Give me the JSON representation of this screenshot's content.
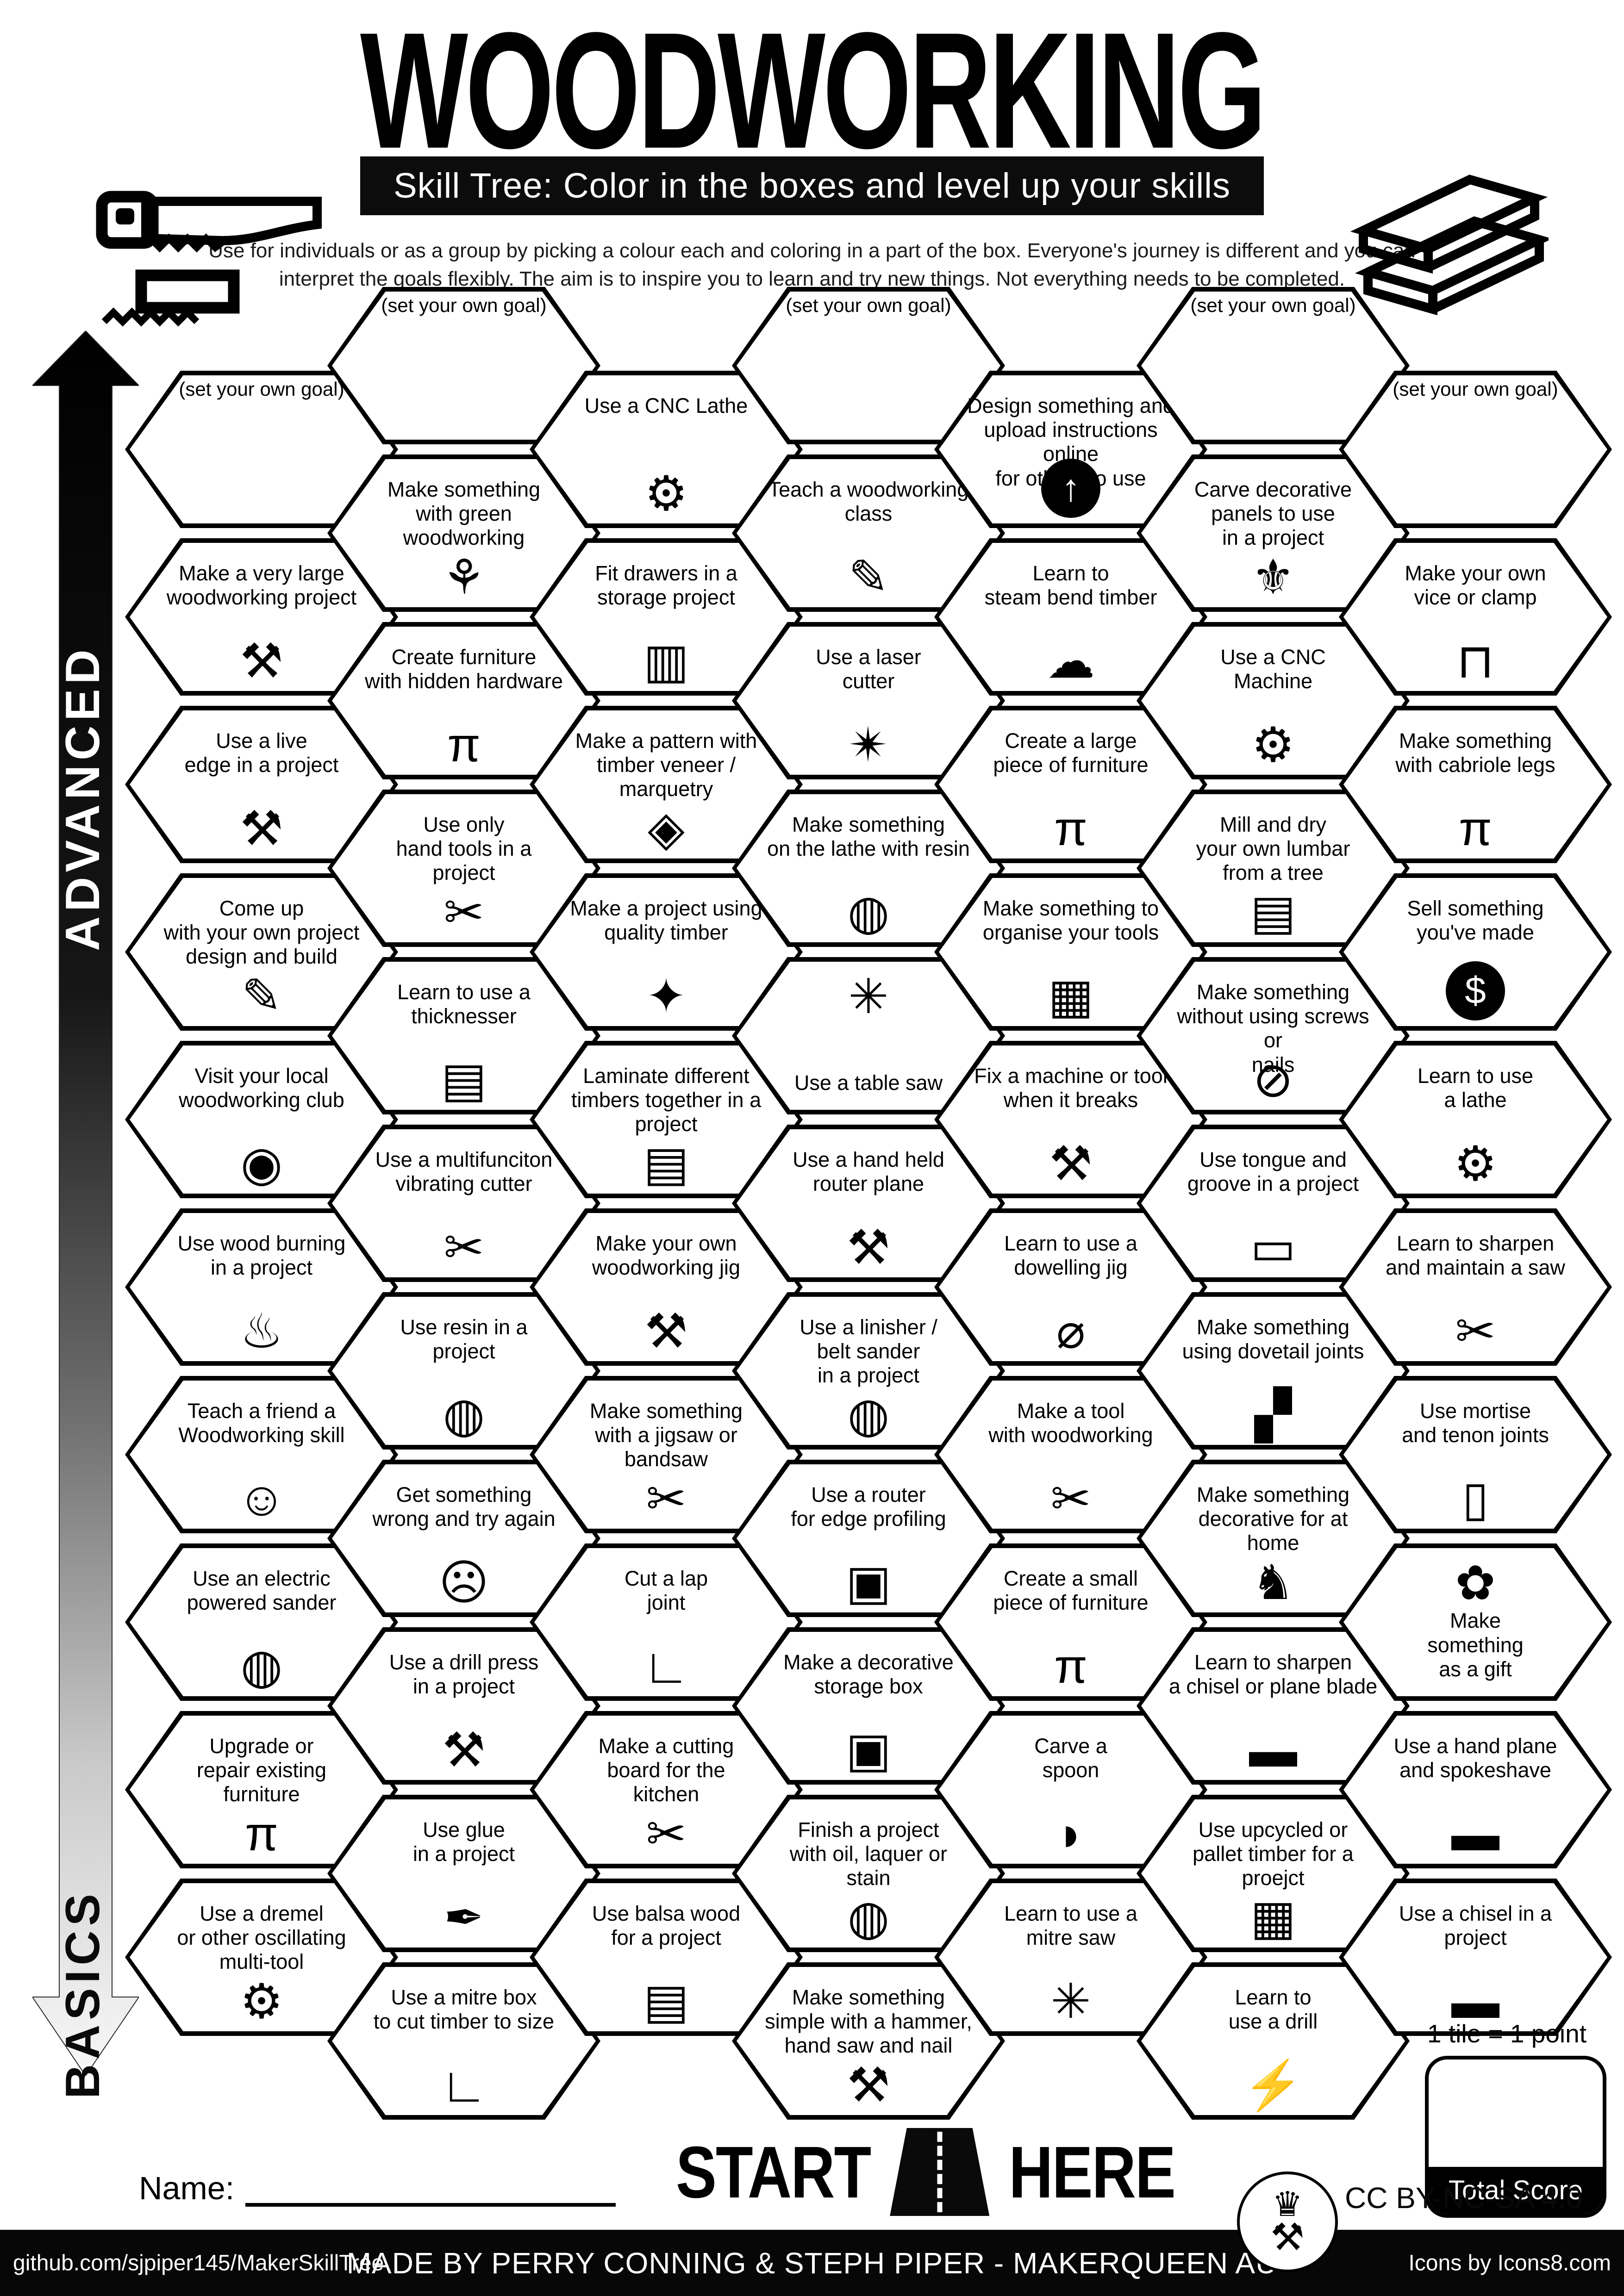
{
  "title": "WOODWORKING",
  "subtitle": "Skill Tree:  Color in the boxes and level up your skills",
  "description": "Use for individuals or as a group by picking a colour each and coloring in a part of the box.  Everyone's journey is different and you can\ninterpret the goals flexibly.  The aim is to inspire you to learn and try new things. Not everything needs to be completed.",
  "axis": {
    "top_label": "ADVANCED",
    "bottom_label": "BASICS"
  },
  "start_here": {
    "start": "START",
    "here": "HERE"
  },
  "name_label": "Name:",
  "scoring": {
    "tile_note": "1 tile = 1 point",
    "total_label": "Total Score"
  },
  "license": "CC BY-NC-SA 4.0",
  "logo": {
    "crown": "♛",
    "tools": "⚒"
  },
  "footer": {
    "left": "github.com/sjpiper145/MakerSkillTree",
    "center": "MADE BY PERRY CONNING & STEPH PIPER  -  MAKERQUEEN AU",
    "right": "Icons by Icons8.com"
  },
  "columns": [
    {
      "hexes": [
        {
          "label": "(set your own goal)",
          "icon": "blank",
          "glyph": ""
        },
        {
          "label": "Make a very large\nwoodworking project",
          "icon": "person-carrying-timber",
          "glyph": "⚒"
        },
        {
          "label": "Use a live\nedge in a project",
          "icon": "axe-on-log",
          "glyph": "⚒"
        },
        {
          "label": "Come up\nwith your own project\ndesign and build",
          "icon": "blueprint-pencil",
          "glyph": "✎"
        },
        {
          "label": "Visit your local\nwoodworking club",
          "icon": "location-pin",
          "glyph": "◉"
        },
        {
          "label": "Use wood burning\nin a project",
          "icon": "flame",
          "glyph": "♨"
        },
        {
          "label": "Teach a friend a\nWoodworking skill",
          "icon": "friends-at-laptop",
          "glyph": "☺"
        },
        {
          "label": "Use an electric\npowered sander",
          "icon": "orbital-sander",
          "glyph": "◍"
        },
        {
          "label": "Upgrade or\nrepair existing\nfurniture",
          "icon": "stool",
          "glyph": "π"
        },
        {
          "label": "Use a dremel\nor other oscillating\nmulti-tool",
          "icon": "rotary-multi-tool",
          "glyph": "⚙"
        }
      ]
    },
    {
      "hexes": [
        {
          "label": "(set your own goal)",
          "icon": "blank",
          "glyph": ""
        },
        {
          "label": "Make something\nwith green woodworking",
          "icon": "seedling",
          "glyph": "⚘"
        },
        {
          "label": "Create furniture\nwith hidden hardware",
          "icon": "stool",
          "glyph": "π"
        },
        {
          "label": "Use only\nhand tools in a\nproject",
          "icon": "hand-saw",
          "glyph": "✂"
        },
        {
          "label": "Learn to use a\nthicknesser",
          "icon": "timber-stack",
          "glyph": "▤"
        },
        {
          "label": "Use a multifunciton\nvibrating cutter",
          "icon": "oscillating-cutter",
          "glyph": "✂"
        },
        {
          "label": "Use resin in a\nproject",
          "icon": "dripping-paint-can",
          "glyph": "◍"
        },
        {
          "label": "Get something\nwrong and try again",
          "icon": "sad-face-frame",
          "glyph": "☹"
        },
        {
          "label": "Use a drill press\nin a project",
          "icon": "drill-press",
          "glyph": "⚒"
        },
        {
          "label": "Use glue\nin a project",
          "icon": "glue-bottle",
          "glyph": "✒"
        },
        {
          "label": "Use a mitre box\nto cut timber to size",
          "icon": "mitre-box",
          "glyph": "∟"
        }
      ]
    },
    {
      "hexes": [
        {
          "label": "Use a CNC Lathe",
          "icon": "cnc-lathe",
          "glyph": "⚙"
        },
        {
          "label": "Fit drawers in a\nstorage project",
          "icon": "drawer-cabinet",
          "glyph": "▥"
        },
        {
          "label": "Make a pattern with\ntimber veneer / marquetry",
          "icon": "marquetry-pattern",
          "glyph": "◈"
        },
        {
          "label": "Make a project using\nquality timber",
          "icon": "sparkling-timber",
          "glyph": "✦"
        },
        {
          "label": "Laminate different\ntimbers together in a\nproject",
          "icon": "laminated-timber",
          "glyph": "▤"
        },
        {
          "label": "Make your own\nwoodworking jig",
          "icon": "screwdriver-wrench",
          "glyph": "⚒"
        },
        {
          "label": "Make something\nwith a jigsaw or\nbandsaw",
          "icon": "jigsaw",
          "glyph": "✂"
        },
        {
          "label": "Cut a lap\njoint",
          "icon": "lap-joint",
          "glyph": "∟"
        },
        {
          "label": "Make a cutting\nboard for the\nkitchen",
          "icon": "cutting-board",
          "glyph": "✂"
        },
        {
          "label": "Use balsa wood\nfor a project",
          "icon": "balsa-planks",
          "glyph": "▤"
        }
      ]
    },
    {
      "hexes": [
        {
          "label": "(set your own goal)",
          "icon": "blank",
          "glyph": ""
        },
        {
          "label": "Teach a woodworking\nclass",
          "icon": "teacher-whiteboard",
          "glyph": "✎"
        },
        {
          "label": "Use a laser\ncutter",
          "icon": "laser-beam",
          "glyph": "✴"
        },
        {
          "label": "Make something\non the lathe with resin",
          "icon": "resin-paint-can",
          "glyph": "◍"
        },
        {
          "label": "Use a table saw",
          "icon": "circular-saw-blade",
          "glyph": "✳",
          "layout": "icon-top"
        },
        {
          "label": "Use a hand held\nrouter plane",
          "icon": "router-plane",
          "glyph": "⚒"
        },
        {
          "label": "Use a linisher /\nbelt sander\nin a project",
          "icon": "belt-sander",
          "glyph": "◍"
        },
        {
          "label": "Use a router\nfor edge profiling",
          "icon": "edge-profile-chest",
          "glyph": "▣"
        },
        {
          "label": "Make a decorative\nstorage box",
          "icon": "storage-box",
          "glyph": "▣"
        },
        {
          "label": "Finish a project\nwith oil,  laquer or\nstain",
          "icon": "finish-paint-can",
          "glyph": "◍"
        },
        {
          "label": "Make something\nsimple with a hammer,\nhand saw and nail",
          "icon": "hammer",
          "glyph": "⚒"
        }
      ]
    },
    {
      "hexes": [
        {
          "label": "Design something and\nupload instructions online\nfor others to use",
          "icon": "upload-circle",
          "glyph": "↑",
          "badge": true
        },
        {
          "label": "Learn to\nsteam bend timber",
          "icon": "steam-cloud-tree",
          "glyph": "☁"
        },
        {
          "label": "Create a large\npiece of furniture",
          "icon": "large-table",
          "glyph": "π"
        },
        {
          "label": "Make something to\norganise your tools",
          "icon": "tool-pegboard",
          "glyph": "▦"
        },
        {
          "label": "Fix a machine or tool\nwhen it breaks",
          "icon": "wrench-screwdriver",
          "glyph": "⚒"
        },
        {
          "label": "Learn to use a\ndowelling jig",
          "icon": "dowel-rod",
          "glyph": "⌀"
        },
        {
          "label": "Make a tool\nwith woodworking",
          "icon": "drawknife",
          "glyph": "✂"
        },
        {
          "label": "Create a small\npiece of furniture",
          "icon": "small-stool",
          "glyph": "π"
        },
        {
          "label": "Carve a\nspoon",
          "icon": "spoon",
          "glyph": "◗"
        },
        {
          "label": "Learn to use a\nmitre saw",
          "icon": "mitre-saw",
          "glyph": "✳"
        }
      ]
    },
    {
      "hexes": [
        {
          "label": "(set your own goal)",
          "icon": "blank",
          "glyph": ""
        },
        {
          "label": "Carve decorative\npanels to use\nin a project",
          "icon": "fleur-de-lis",
          "glyph": "⚜"
        },
        {
          "label": "Use a CNC\nMachine",
          "icon": "cnc-machine",
          "glyph": "⚙"
        },
        {
          "label": "Mill and dry\nyour own lumbar\nfrom a tree",
          "icon": "milled-lumber",
          "glyph": "▤"
        },
        {
          "label": "Make something\nwithout using screws or\nnails",
          "icon": "no-screws-nails",
          "glyph": "⊘"
        },
        {
          "label": "Use tongue and\ngroove in a project",
          "icon": "tongue-groove-joint",
          "glyph": "▭"
        },
        {
          "label": "Make something\nusing dovetail joints",
          "icon": "dovetail-joint",
          "glyph": "▞"
        },
        {
          "label": "Make something\ndecorative for at\nhome",
          "icon": "lion-carving",
          "glyph": "♞"
        },
        {
          "label": "Learn to sharpen\na chisel or plane blade",
          "icon": "sharpened-chisel",
          "glyph": "▬"
        },
        {
          "label": "Use upcycled or\npallet timber for a\nproejct",
          "icon": "pallet-crate",
          "glyph": "▦"
        },
        {
          "label": "Learn to\nuse a drill",
          "icon": "power-drill",
          "glyph": "⚡"
        }
      ]
    },
    {
      "hexes": [
        {
          "label": "(set your own goal)",
          "icon": "blank",
          "glyph": ""
        },
        {
          "label": "Make your own\nvice or clamp",
          "icon": "vice-clamp",
          "glyph": "⊓"
        },
        {
          "label": "Make something\nwith cabriole legs",
          "icon": "cabriole-table",
          "glyph": "π"
        },
        {
          "label": "Sell something\nyou've made",
          "icon": "dollar-coin",
          "glyph": "$",
          "badge": true
        },
        {
          "label": "Learn to use\na lathe",
          "icon": "wood-lathe",
          "glyph": "⚙"
        },
        {
          "label": "Learn to sharpen\nand maintain a saw",
          "icon": "sharp-hand-saw",
          "glyph": "✂"
        },
        {
          "label": "Use mortise\nand tenon joints",
          "icon": "mortise-tenon",
          "glyph": "▯"
        },
        {
          "label": "Make\nsomething\nas a gift",
          "icon": "gift-bow",
          "glyph": "✿",
          "layout": "icon-top"
        },
        {
          "label": "Use a hand plane\nand spokeshave",
          "icon": "hand-plane",
          "glyph": "▬"
        },
        {
          "label": "Use a chisel in a\nproject",
          "icon": "chisel",
          "glyph": "▬"
        }
      ]
    }
  ]
}
